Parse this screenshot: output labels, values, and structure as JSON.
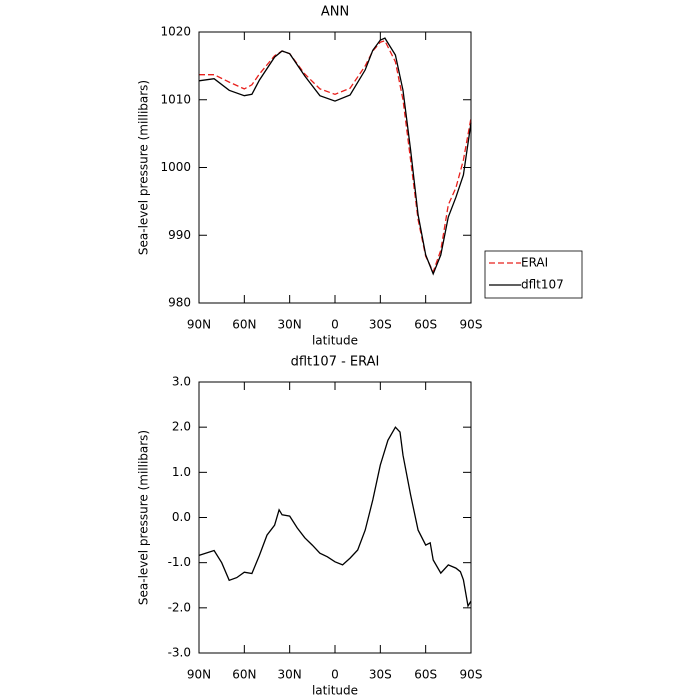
{
  "chart_data": [
    {
      "type": "line",
      "title": "ANN",
      "xlabel": "latitude",
      "ylabel": "Sea-level pressure (millibars)",
      "x": [
        90,
        80,
        70,
        60,
        55,
        50,
        40,
        35,
        30,
        20,
        10,
        0,
        -10,
        -20,
        -25,
        -30,
        -33,
        -40,
        -45,
        -50,
        -55,
        -60,
        -65,
        -70,
        -75,
        -80,
        -85,
        -90
      ],
      "series": [
        {
          "name": "ERAI",
          "color": "#e8201c",
          "dashed": true,
          "values": [
            1013.7,
            1013.7,
            1012.6,
            1011.6,
            1012.2,
            1013.8,
            1016.5,
            1017.2,
            1016.8,
            1013.8,
            1011.6,
            1010.8,
            1011.7,
            1015.0,
            1017.2,
            1018.5,
            1018.7,
            1015.6,
            1010.0,
            1001.1,
            992.3,
            986.9,
            984.6,
            987.8,
            994.5,
            997.0,
            1001.1,
            1007.3
          ]
        },
        {
          "name": "dflt107",
          "color": "#000000",
          "dashed": false,
          "values": [
            1012.8,
            1013.1,
            1011.4,
            1010.6,
            1010.8,
            1012.9,
            1016.3,
            1017.2,
            1016.8,
            1013.5,
            1010.6,
            1009.8,
            1010.7,
            1014.4,
            1017.3,
            1018.8,
            1019.1,
            1016.6,
            1011.4,
            1002.6,
            993.0,
            987.1,
            984.3,
            987.1,
            992.7,
            995.6,
            998.9,
            1006.6
          ]
        }
      ],
      "xlim": [
        90,
        -90
      ],
      "xticks": [
        {
          "value": 90,
          "label": "90N"
        },
        {
          "value": 60,
          "label": "60N"
        },
        {
          "value": 30,
          "label": "30N"
        },
        0,
        {
          "value": -30,
          "label": "30S"
        },
        {
          "value": -60,
          "label": "60S"
        },
        {
          "value": -90,
          "label": "90S"
        }
      ],
      "ylim": [
        980,
        1020
      ],
      "yticks": [
        980,
        990,
        1000,
        1010,
        1020
      ],
      "legend": "outside-right"
    },
    {
      "type": "line",
      "title": "dflt107 - ERAI",
      "xlabel": "latitude",
      "ylabel": "Sea-level pressure (millibars)",
      "color": "#000000",
      "x": [
        90,
        80,
        75,
        70,
        65,
        60,
        55,
        50,
        45,
        40,
        37,
        35,
        30,
        25,
        20,
        15,
        10,
        5,
        0,
        -5,
        -10,
        -15,
        -20,
        -25,
        -30,
        -35,
        -40,
        -43,
        -45,
        -50,
        -55,
        -60,
        -63,
        -65,
        -70,
        -75,
        -80,
        -83,
        -85,
        -88,
        -90
      ],
      "values": [
        -0.84,
        -0.73,
        -1.0,
        -1.39,
        -1.33,
        -1.21,
        -1.24,
        -0.84,
        -0.39,
        -0.17,
        0.17,
        0.06,
        0.03,
        -0.23,
        -0.45,
        -0.61,
        -0.79,
        -0.87,
        -0.98,
        -1.05,
        -0.9,
        -0.72,
        -0.28,
        0.39,
        1.16,
        1.71,
        2.0,
        1.89,
        1.38,
        0.5,
        -0.28,
        -0.61,
        -0.56,
        -0.94,
        -1.23,
        -1.05,
        -1.12,
        -1.2,
        -1.38,
        -1.96,
        -1.85
      ],
      "xlim": [
        90,
        -90
      ],
      "xticks": [
        {
          "value": 90,
          "label": "90N"
        },
        {
          "value": 60,
          "label": "60N"
        },
        {
          "value": 30,
          "label": "30N"
        },
        0,
        {
          "value": -30,
          "label": "30S"
        },
        {
          "value": -60,
          "label": "60S"
        },
        {
          "value": -90,
          "label": "90S"
        }
      ],
      "ylim": [
        -3,
        3
      ],
      "yticks": [
        {
          "value": -3,
          "label": "-3.0"
        },
        {
          "value": -2,
          "label": "-2.0"
        },
        {
          "value": -1,
          "label": "-1.0"
        },
        {
          "value": 0,
          "label": "0.0"
        },
        {
          "value": 1,
          "label": "1.0"
        },
        {
          "value": 2,
          "label": "2.0"
        },
        {
          "value": 3,
          "label": "3.0"
        }
      ]
    }
  ]
}
